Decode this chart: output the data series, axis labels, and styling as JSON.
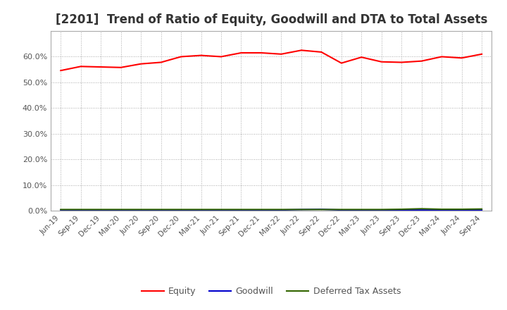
{
  "title": "[2201]  Trend of Ratio of Equity, Goodwill and DTA to Total Assets",
  "labels": [
    "Jun-19",
    "Sep-19",
    "Dec-19",
    "Mar-20",
    "Jun-20",
    "Sep-20",
    "Dec-20",
    "Mar-21",
    "Jun-21",
    "Sep-21",
    "Dec-21",
    "Mar-22",
    "Jun-22",
    "Sep-22",
    "Dec-22",
    "Mar-23",
    "Jun-23",
    "Sep-23",
    "Dec-23",
    "Mar-24",
    "Jun-24",
    "Sep-24"
  ],
  "equity": [
    0.546,
    0.562,
    0.56,
    0.558,
    0.572,
    0.578,
    0.6,
    0.605,
    0.6,
    0.615,
    0.615,
    0.61,
    0.625,
    0.618,
    0.575,
    0.598,
    0.58,
    0.578,
    0.583,
    0.6,
    0.595,
    0.61
  ],
  "goodwill": [
    0.003,
    0.003,
    0.003,
    0.003,
    0.003,
    0.003,
    0.003,
    0.003,
    0.003,
    0.003,
    0.003,
    0.003,
    0.005,
    0.006,
    0.003,
    0.003,
    0.003,
    0.003,
    0.003,
    0.003,
    0.003,
    0.003
  ],
  "dta": [
    0.005,
    0.005,
    0.005,
    0.005,
    0.005,
    0.005,
    0.005,
    0.005,
    0.005,
    0.005,
    0.005,
    0.005,
    0.005,
    0.005,
    0.005,
    0.005,
    0.005,
    0.006,
    0.008,
    0.006,
    0.006,
    0.007
  ],
  "equity_color": "#ff0000",
  "goodwill_color": "#0000cc",
  "dta_color": "#336600",
  "ylim": [
    0.0,
    0.7
  ],
  "yticks": [
    0.0,
    0.1,
    0.2,
    0.3,
    0.4,
    0.5,
    0.6
  ],
  "background_color": "#ffffff",
  "plot_bg_color": "#ffffff",
  "grid_color": "#aaaaaa",
  "title_fontsize": 12,
  "title_color": "#333333",
  "tick_color": "#555555",
  "legend_labels": [
    "Equity",
    "Goodwill",
    "Deferred Tax Assets"
  ]
}
